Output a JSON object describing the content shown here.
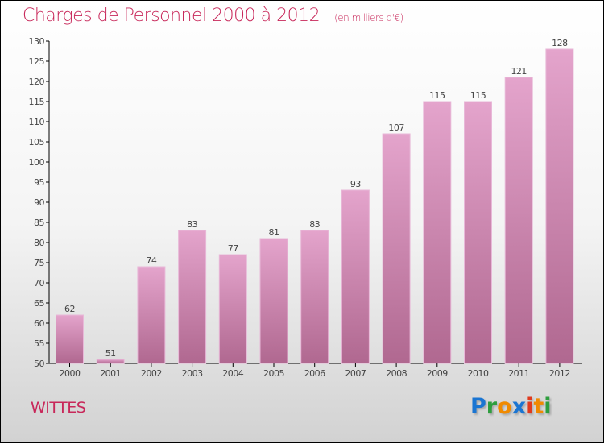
{
  "chart_data": {
    "type": "bar",
    "title": "Charges de Personnel 2000 à 2012",
    "subtitle": "(en milliers d'€)",
    "categories": [
      "2000",
      "2001",
      "2002",
      "2003",
      "2004",
      "2005",
      "2006",
      "2007",
      "2008",
      "2009",
      "2010",
      "2011",
      "2012"
    ],
    "values": [
      62,
      51,
      74,
      83,
      77,
      81,
      83,
      93,
      107,
      115,
      115,
      121,
      128
    ],
    "ylim": [
      50,
      130
    ],
    "yticks": [
      50,
      55,
      60,
      65,
      70,
      75,
      80,
      85,
      90,
      95,
      100,
      105,
      110,
      115,
      120,
      125,
      130
    ],
    "xlabel": "",
    "ylabel": "",
    "bar_color_top": "#e4a4cc",
    "bar_color_bottom": "#b06890"
  },
  "commune": "WITTES",
  "logo": {
    "letters": [
      "P",
      "r",
      "o",
      "x",
      "i",
      "t",
      "i"
    ],
    "colors": [
      "#1a75d2",
      "#2e9e3e",
      "#f08a00",
      "#1a75d2",
      "#e03a1e",
      "#f08a00",
      "#2e9e3e"
    ]
  }
}
